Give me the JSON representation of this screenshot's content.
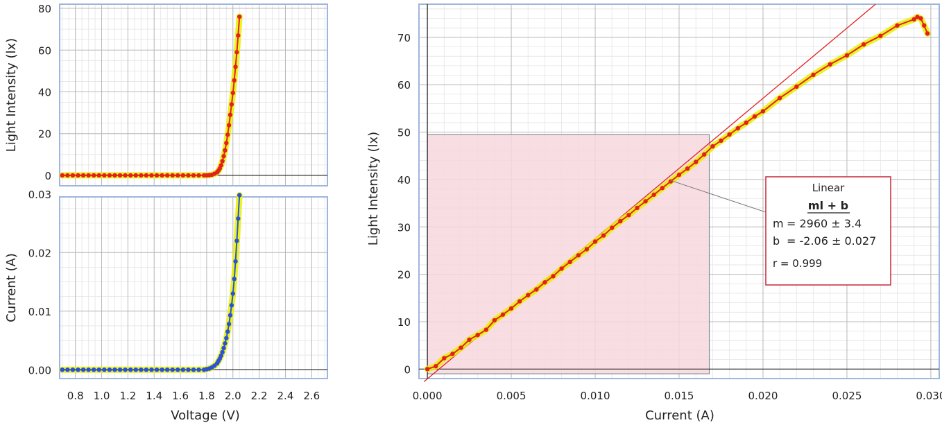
{
  "colors": {
    "grid_major": "#b8b8b8",
    "grid_minor": "#e4e4e4",
    "frame": "#9fb6dc",
    "axis": "#222222",
    "red_series": "#e32020",
    "blue_series": "#2a52d6",
    "highlight": "#e8f000",
    "fit_line": "#e32020",
    "fit_region_fill": "#f7d8de",
    "fit_region_stroke": "#7f8a96",
    "fit_box_stroke": "#cc3344"
  },
  "chart_data": [
    {
      "id": "light-vs-voltage",
      "type": "scatter",
      "xlabel": "",
      "ylabel": "Light Intensity (lx)",
      "xlim": [
        0.68,
        2.72
      ],
      "ylim": [
        -5,
        82
      ],
      "ytick_labels": [
        "0",
        "20",
        "40",
        "60",
        "80"
      ],
      "series": [
        {
          "color": "red",
          "x": [
            0.7,
            0.74,
            0.78,
            0.82,
            0.86,
            0.9,
            0.94,
            0.98,
            1.02,
            1.06,
            1.1,
            1.14,
            1.18,
            1.22,
            1.26,
            1.3,
            1.34,
            1.38,
            1.42,
            1.46,
            1.5,
            1.54,
            1.58,
            1.62,
            1.66,
            1.7,
            1.74,
            1.78,
            1.8,
            1.82,
            1.84,
            1.86,
            1.88,
            1.89,
            1.9,
            1.91,
            1.92,
            1.93,
            1.94,
            1.95,
            1.96,
            1.97,
            1.98,
            1.99,
            2.0,
            2.01,
            2.02,
            2.03,
            2.04,
            2.05
          ],
          "y": [
            0,
            0,
            0,
            0,
            0,
            0,
            0,
            0,
            0,
            0,
            0,
            0,
            0,
            0,
            0,
            0,
            0,
            0,
            0,
            0,
            0,
            0,
            0,
            0,
            0,
            0,
            0,
            0,
            0,
            0.1,
            0.3,
            0.8,
            1.5,
            2.3,
            3.3,
            4.8,
            6.8,
            9.2,
            12,
            15.5,
            19.5,
            24,
            29,
            34,
            39.5,
            45.5,
            52,
            59,
            67,
            76
          ]
        }
      ]
    },
    {
      "id": "current-vs-voltage",
      "type": "scatter",
      "xlabel": "Voltage (V)",
      "ylabel": "Current (A)",
      "xlim": [
        0.68,
        2.72
      ],
      "ylim": [
        -0.0015,
        0.0295
      ],
      "xtick_labels": [
        "0.8",
        "1.0",
        "1.2",
        "1.4",
        "1.6",
        "1.8",
        "2.0",
        "2.2",
        "2.4",
        "2.6"
      ],
      "ytick_labels": [
        "0.00",
        "0.01",
        "0.02",
        "0.03"
      ],
      "series": [
        {
          "color": "blue",
          "x": [
            0.7,
            0.74,
            0.78,
            0.82,
            0.86,
            0.9,
            0.94,
            0.98,
            1.02,
            1.06,
            1.1,
            1.14,
            1.18,
            1.22,
            1.26,
            1.3,
            1.34,
            1.38,
            1.42,
            1.46,
            1.5,
            1.54,
            1.58,
            1.62,
            1.66,
            1.7,
            1.74,
            1.78,
            1.8,
            1.82,
            1.84,
            1.86,
            1.88,
            1.89,
            1.9,
            1.91,
            1.92,
            1.93,
            1.94,
            1.95,
            1.96,
            1.97,
            1.98,
            1.99,
            2.0,
            2.01,
            2.02,
            2.03,
            2.04,
            2.05
          ],
          "y": [
            0,
            0,
            0,
            0,
            0,
            0,
            0,
            0,
            0,
            0,
            0,
            0,
            0,
            0,
            0,
            0,
            0,
            0,
            0,
            0,
            0,
            0,
            0,
            0,
            0,
            0,
            0,
            0,
            0.0001,
            0.0002,
            0.0004,
            0.0007,
            0.0011,
            0.0015,
            0.0019,
            0.0024,
            0.003,
            0.0037,
            0.0045,
            0.0054,
            0.0065,
            0.0078,
            0.0093,
            0.011,
            0.013,
            0.0155,
            0.0185,
            0.022,
            0.0258,
            0.0298
          ]
        }
      ]
    },
    {
      "id": "light-vs-current",
      "type": "scatter",
      "xlabel": "Current (A)",
      "ylabel": "Light Intensity (lx)",
      "xlim": [
        -0.0005,
        0.0305
      ],
      "ylim": [
        -2,
        77
      ],
      "xtick_labels": [
        "0.000",
        "0.005",
        "0.010",
        "0.015",
        "0.020",
        "0.025",
        "0.030"
      ],
      "ytick_labels": [
        "0",
        "10",
        "20",
        "30",
        "40",
        "50",
        "60",
        "70"
      ],
      "series": [
        {
          "color": "red",
          "x": [
            0,
            0.0005,
            0.001,
            0.0015,
            0.002,
            0.0025,
            0.003,
            0.0035,
            0.004,
            0.0045,
            0.005,
            0.0055,
            0.006,
            0.0065,
            0.007,
            0.0075,
            0.008,
            0.0085,
            0.009,
            0.0095,
            0.01,
            0.0105,
            0.011,
            0.0115,
            0.012,
            0.0125,
            0.013,
            0.0135,
            0.014,
            0.0145,
            0.015,
            0.0155,
            0.016,
            0.0165,
            0.017,
            0.0175,
            0.018,
            0.0185,
            0.019,
            0.0195,
            0.02,
            0.021,
            0.022,
            0.023,
            0.024,
            0.025,
            0.026,
            0.027,
            0.028,
            0.029,
            0.0292,
            0.0294,
            0.0296,
            0.0298
          ],
          "y": [
            0,
            0.6,
            2.3,
            3.2,
            4.5,
            6.2,
            7.2,
            8.3,
            10.3,
            11.5,
            12.8,
            14.3,
            15.6,
            16.8,
            18.3,
            19.6,
            21.2,
            22.6,
            24,
            25.3,
            26.9,
            28.2,
            29.8,
            31.2,
            32.5,
            34,
            35.4,
            36.8,
            38.2,
            39.6,
            41,
            42.3,
            43.7,
            45.3,
            47,
            48.2,
            49.5,
            50.8,
            52,
            53.3,
            54.4,
            57.2,
            59.6,
            62.1,
            64.3,
            66.2,
            68.5,
            70.3,
            72.5,
            73.8,
            74.3,
            74,
            72.5,
            70.8
          ]
        }
      ],
      "fit_region_x": [
        0,
        0.0168
      ],
      "fit_line": {
        "m": 2960,
        "b": -2.06
      },
      "fit_box": {
        "title": "Linear",
        "equation": "ml + b",
        "m_label": "m",
        "m_value": "= 2960 ± 3.4",
        "b_label": "b",
        "b_value": "= -2.06 ± 0.027",
        "r_text": "r = 0.999"
      }
    }
  ]
}
